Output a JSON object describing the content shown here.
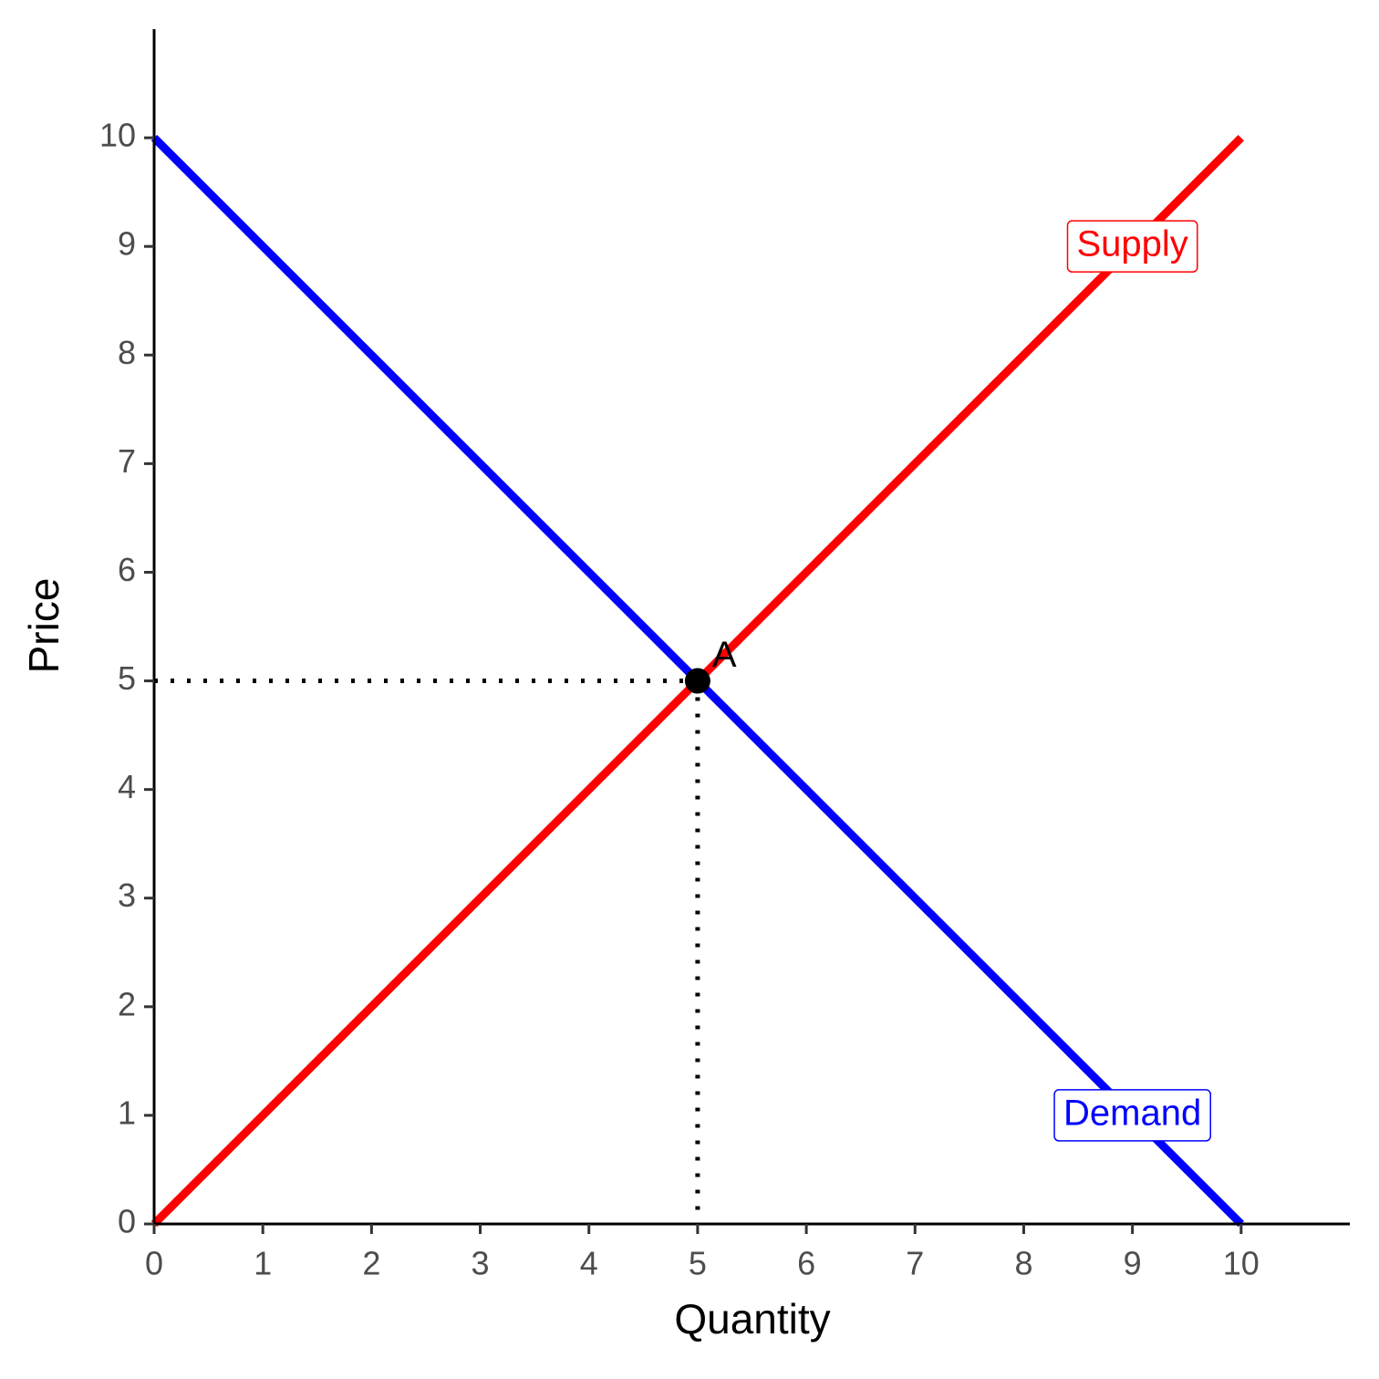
{
  "chart_data": {
    "type": "line",
    "x_label": "Quantity",
    "y_label": "Price",
    "x": [
      0,
      10
    ],
    "series": [
      {
        "name": "Supply",
        "color": "#ff0000",
        "values": [
          0,
          10
        ],
        "label_at": {
          "x": 9,
          "y": 9
        }
      },
      {
        "name": "Demand",
        "color": "#0000ff",
        "values": [
          10,
          0
        ],
        "label_at": {
          "x": 9,
          "y": 1
        }
      }
    ],
    "annotations": [
      {
        "label": "A",
        "x": 5,
        "y": 5,
        "color": "#000000"
      }
    ],
    "xlim": [
      0,
      11
    ],
    "ylim": [
      0,
      11
    ],
    "xticks": [
      0,
      1,
      2,
      3,
      4,
      5,
      6,
      7,
      8,
      9,
      10
    ],
    "yticks": [
      0,
      1,
      2,
      3,
      4,
      5,
      6,
      7,
      8,
      9,
      10
    ],
    "grid": false
  }
}
